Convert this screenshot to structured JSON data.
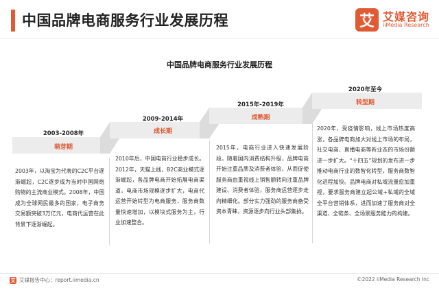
{
  "header": {
    "title": "中国品牌电商服务行业发展历程",
    "logo_cn": "艾媒咨询",
    "logo_en": "iiMedia Research",
    "logo_mark": "艾"
  },
  "diagram": {
    "title": "中国品牌电商服务行业发展历程",
    "stages": [
      {
        "period": "2003-2008年",
        "name": "萌芽期",
        "description": "2003年，以淘宝为代表的C2C平台逐渐崛起，C2C逐步成为当时中国网络购物的主流商业模式。2008年，中国成为全球网民最多的国家，电子商务交易额突破3万亿元，电商代运营在此背景下逐渐崛起。"
      },
      {
        "period": "2009-2014年",
        "name": "成长期",
        "description": "2010年后，中国电商行业稳步成长。2012年，天猫上线，B2C商业模式逐渐崛起，各品牌电商开始拓展电商渠道，电商市场规模逐步扩大，电商代运营开始转型为电商服务，服务商数量快速增加，以模块式服务为主，行业加速整合。"
      },
      {
        "period": "2015年-2019年",
        "name": "成熟期",
        "description": "2015年，电商行业进入快速发展阶段。随着国内消费结构升级，品牌电商开始注重品质及消费者体验，从而促使服务商由重视线上销售额转向注重品牌建设、消费者体验，服务商运营逐步走向精细化。部分实力强劲的服务商备受资本青睐，资源逐步向行业头部集拢。"
      },
      {
        "period": "2020年至今",
        "name": "转型期",
        "description": "2020年，受疫情影响，线上市场热度高涨，各品牌电商加大对线上市场的布局，社交电商、直播电商等新业态的市场份额进一步扩大。“十四五”规划的发布进一步推动电商行业的数智化转型，服务商数智化进程加快。品牌电商对私域流量愈加重视，要求服务商建立起公域+私域的全域全平台营销体系，进而加速了服务商对全渠道、全链条、全场景服务能力的构建。"
      }
    ]
  },
  "footer": {
    "source": "艾媒报告中心：report.iimedia.cn",
    "copyright": "©2022  iiMedia Research  Inc"
  },
  "colors": {
    "accent": "#e05a33",
    "step": "#ececec",
    "step_side": "#dcdcdc"
  }
}
